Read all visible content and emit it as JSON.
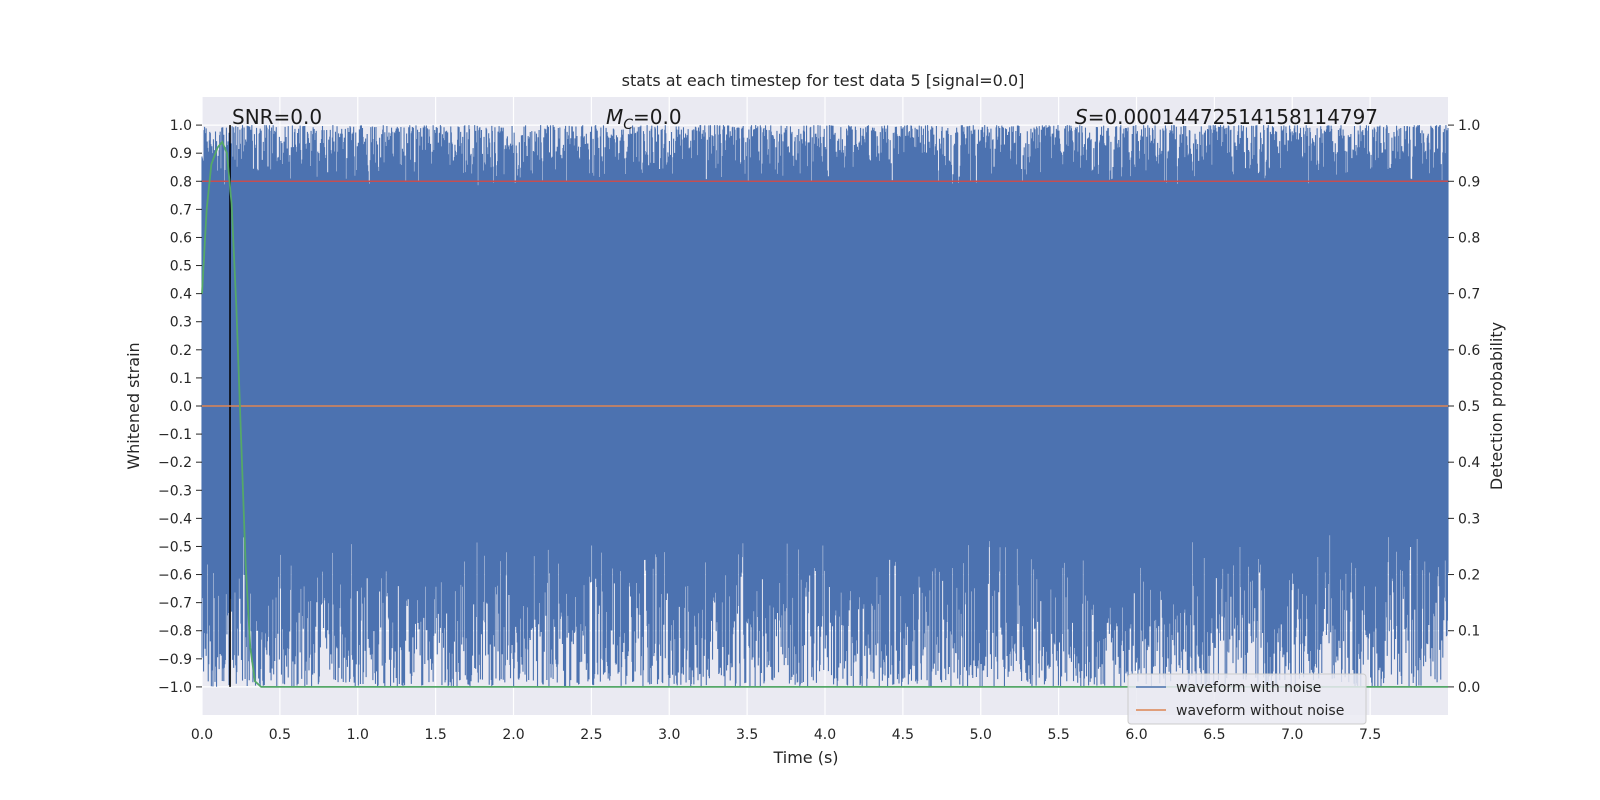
{
  "chart_data": {
    "type": "line",
    "title": "stats at each timestep for test data 5 [signal=0.0]",
    "xlabel": "Time (s)",
    "ylabel_left": "Whitened strain",
    "ylabel_right": "Detection probability",
    "xlim": [
      0.0,
      8.0
    ],
    "ylim_left": [
      -1.1,
      1.1
    ],
    "ylim_right": [
      -0.05,
      1.05
    ],
    "xticks": [
      "0.0",
      "0.5",
      "1.0",
      "1.5",
      "2.0",
      "2.5",
      "3.0",
      "3.5",
      "4.0",
      "4.5",
      "5.0",
      "5.5",
      "6.0",
      "6.5",
      "7.0",
      "7.5"
    ],
    "yticks_left": [
      "1.0",
      "0.9",
      "0.8",
      "0.7",
      "0.6",
      "0.5",
      "0.4",
      "0.3",
      "0.2",
      "0.1",
      "0.0",
      "−0.1",
      "−0.2",
      "−0.3",
      "−0.4",
      "−0.5",
      "−0.6",
      "−0.7",
      "−0.8",
      "−0.9",
      "−1.0"
    ],
    "yticks_right": [
      "1.0",
      "0.9",
      "0.8",
      "0.7",
      "0.6",
      "0.5",
      "0.4",
      "0.3",
      "0.2",
      "0.1",
      "0.0"
    ],
    "grid": true,
    "legend_position": "bottom-right",
    "series": [
      {
        "name": "waveform with noise",
        "color": "#4c72b0",
        "axis": "left",
        "description_values": {
          "min": -1.0,
          "max": 1.0
        }
      },
      {
        "name": "waveform without noise",
        "color": "#dd8452",
        "axis": "left",
        "values_constant": 0.0
      },
      {
        "color": "#55a868",
        "axis": "right",
        "x": [
          0.0,
          0.03,
          0.06,
          0.1,
          0.13,
          0.16,
          0.19,
          0.22,
          0.25,
          0.28,
          0.31,
          0.34,
          0.38,
          0.5,
          1.0,
          8.0
        ],
        "y": [
          0.7,
          0.85,
          0.93,
          0.96,
          0.97,
          0.95,
          0.86,
          0.68,
          0.45,
          0.22,
          0.07,
          0.01,
          0.0,
          0.0,
          0.0,
          0.0
        ]
      }
    ],
    "reference_lines": [
      {
        "axis": "right",
        "y": 0.9,
        "color": "#c44e52"
      },
      {
        "axis": "left",
        "x": 0.18,
        "color": "#000000"
      }
    ],
    "annotations": {
      "snr": "SNR=0.0",
      "mc_symbol": "M",
      "mc_sub": "C",
      "mc_value": "=0.0",
      "s_symbol": "S",
      "s_value": "=0.00014472514158114797"
    }
  }
}
